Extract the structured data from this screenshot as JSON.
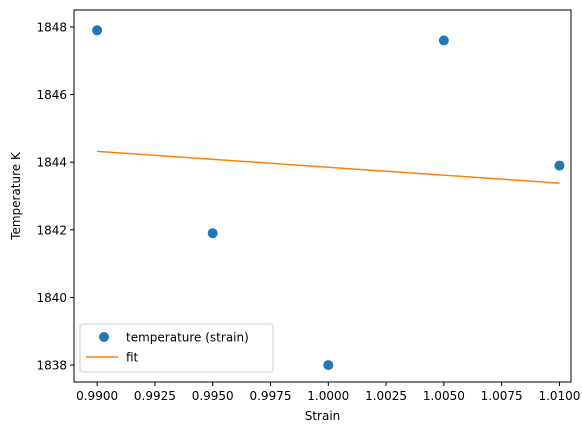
{
  "chart_data": {
    "type": "scatter",
    "xlabel": "Strain",
    "ylabel": "Temperature K",
    "xlim": [
      0.989,
      1.0105
    ],
    "ylim": [
      1837.5,
      1848.5
    ],
    "xticks": [
      "0.9900",
      "0.9925",
      "0.9950",
      "0.9975",
      "1.0000",
      "1.0025",
      "1.0050",
      "1.0075",
      "1.0100"
    ],
    "yticks": [
      "1838",
      "1840",
      "1842",
      "1844",
      "1846",
      "1848"
    ],
    "grid": false,
    "legend_position": "lower-left",
    "series": [
      {
        "name": "temperature (strain)",
        "kind": "scatter",
        "color": "#1f77b4",
        "x": [
          0.99,
          0.995,
          1.0,
          1.005,
          1.01
        ],
        "y": [
          1847.9,
          1841.9,
          1838.0,
          1847.6,
          1843.9
        ]
      },
      {
        "name": "fit",
        "kind": "line",
        "color": "#ff7f0e",
        "x": [
          0.99,
          1.01
        ],
        "y": [
          1844.32,
          1843.38
        ]
      }
    ]
  }
}
